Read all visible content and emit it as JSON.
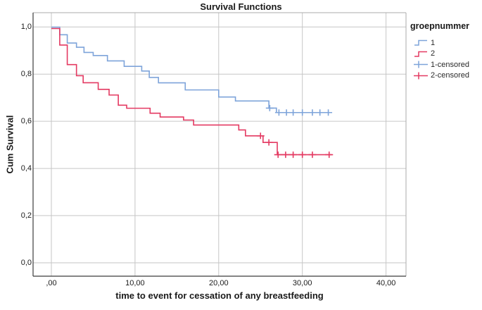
{
  "title": "Survival Functions",
  "x_axis": {
    "label": "time to event for cessation of any breastfeeding",
    "ticks": [
      {
        "value": 0,
        "label": ",00"
      },
      {
        "value": 10,
        "label": "10,00"
      },
      {
        "value": 20,
        "label": "20,00"
      },
      {
        "value": 30,
        "label": "30,00"
      },
      {
        "value": 40,
        "label": "40,00"
      }
    ]
  },
  "y_axis": {
    "label": "Cum Survival",
    "ticks": [
      {
        "value": 0.0,
        "label": "0,0"
      },
      {
        "value": 0.2,
        "label": "0,2"
      },
      {
        "value": 0.4,
        "label": "0,4"
      },
      {
        "value": 0.6,
        "label": "0,6"
      },
      {
        "value": 0.8,
        "label": "0,8"
      },
      {
        "value": 1.0,
        "label": "1,0"
      }
    ]
  },
  "legend": {
    "title": "groepnummer",
    "items": [
      {
        "label": "1",
        "glyph": "step",
        "series": 0
      },
      {
        "label": "2",
        "glyph": "step",
        "series": 1
      },
      {
        "label": "1-censored",
        "glyph": "censor",
        "series": 0
      },
      {
        "label": "2-censored",
        "glyph": "censor",
        "series": 1
      }
    ]
  },
  "colors": {
    "series1": "#7EA4DA",
    "series2": "#E43A62",
    "grid": "#C6C6C6",
    "frame": "#ABABAB",
    "axis": "#3C3C3C",
    "text": "#1A1A1A"
  },
  "chart_data": {
    "type": "line",
    "subtype": "kaplan_meier_step",
    "title": "Survival Functions",
    "xlabel": "time to event for cessation of any breastfeeding",
    "ylabel": "Cum Survival",
    "xlim": [
      -2.2,
      42.4
    ],
    "ylim": [
      -0.057,
      1.06
    ],
    "x_ticks": [
      0,
      10,
      20,
      30,
      40
    ],
    "y_ticks": [
      0.0,
      0.2,
      0.4,
      0.6,
      0.8,
      1.0
    ],
    "grid": true,
    "legend_position": "right",
    "series": [
      {
        "name": "1",
        "color": "#7EA4DA",
        "start": [
          0,
          1.0
        ],
        "steps": [
          [
            1.0,
            0.968
          ],
          [
            1.9,
            0.933
          ],
          [
            3.0,
            0.915
          ],
          [
            3.9,
            0.893
          ],
          [
            5.0,
            0.88
          ],
          [
            6.7,
            0.857
          ],
          [
            8.7,
            0.834
          ],
          [
            10.8,
            0.814
          ],
          [
            11.7,
            0.787
          ],
          [
            12.8,
            0.764
          ],
          [
            16.0,
            0.734
          ],
          [
            20.0,
            0.704
          ],
          [
            22.0,
            0.687
          ],
          [
            26.0,
            0.657
          ],
          [
            26.9,
            0.638
          ]
        ],
        "end_x": 33.5,
        "censored": [
          [
            26.1,
            0.657
          ],
          [
            27.2,
            0.638
          ],
          [
            28.1,
            0.638
          ],
          [
            28.9,
            0.638
          ],
          [
            30.0,
            0.638
          ],
          [
            31.2,
            0.638
          ],
          [
            32.1,
            0.638
          ],
          [
            33.1,
            0.638
          ]
        ]
      },
      {
        "name": "2",
        "color": "#E43A62",
        "start": [
          0,
          1.0
        ],
        "steps": [
          [
            1.0,
            0.93
          ],
          [
            1.9,
            0.847
          ],
          [
            3.0,
            0.8
          ],
          [
            3.8,
            0.77
          ],
          [
            5.6,
            0.742
          ],
          [
            6.9,
            0.718
          ],
          [
            8.0,
            0.675
          ],
          [
            9.0,
            0.662
          ],
          [
            11.8,
            0.641
          ],
          [
            13.0,
            0.625
          ],
          [
            15.8,
            0.612
          ],
          [
            17.0,
            0.591
          ],
          [
            22.4,
            0.57
          ],
          [
            23.2,
            0.545
          ],
          [
            25.3,
            0.517
          ],
          [
            27.0,
            0.465
          ]
        ],
        "end_x": 33.5,
        "censored": [
          [
            25.0,
            0.545
          ],
          [
            26.0,
            0.517
          ],
          [
            27.1,
            0.465
          ],
          [
            28.0,
            0.465
          ],
          [
            28.9,
            0.465
          ],
          [
            30.0,
            0.465
          ],
          [
            31.2,
            0.465
          ],
          [
            33.2,
            0.465
          ]
        ]
      }
    ]
  }
}
